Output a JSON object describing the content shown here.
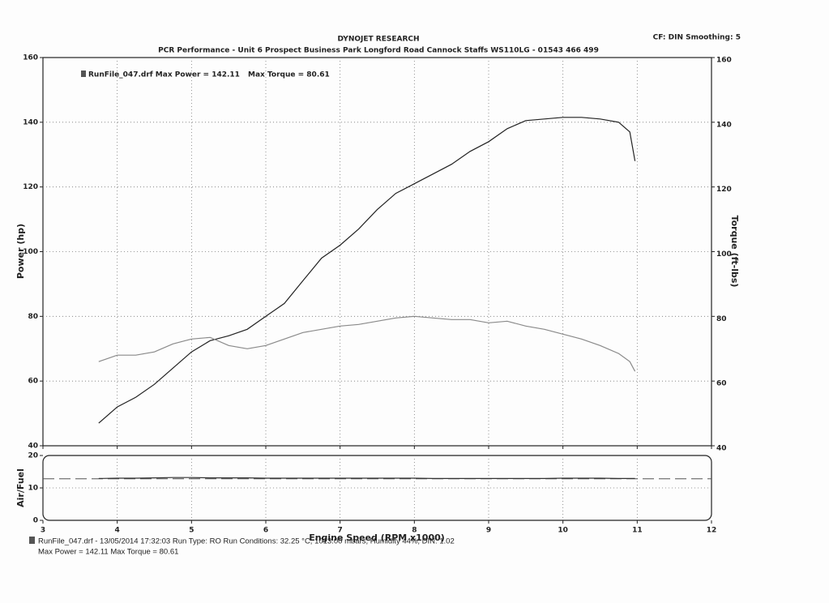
{
  "header": {
    "title": "DYNOJET RESEARCH",
    "subtitle": "PCR Performance - Unit 6 Prospect Business Park Longford Road Cannock Staffs WS110LG - 01543 466 499",
    "settings": "CF: DIN  Smoothing: 5"
  },
  "chart_data": [
    {
      "type": "line",
      "legend_text": "RunFile_047.drf Max Power = 142.11",
      "legend_text_2": "Max Torque = 80.61",
      "y_label": "Power (hp)",
      "y2_label": "Torque (ft-lbs)",
      "x": [
        3.75,
        4,
        4.25,
        4.5,
        4.75,
        5,
        5.25,
        5.5,
        5.75,
        6,
        6.25,
        6.5,
        6.75,
        7,
        7.25,
        7.5,
        7.75,
        8,
        8.25,
        8.5,
        8.75,
        9,
        9.25,
        9.5,
        9.75,
        10,
        10.25,
        10.5,
        10.75,
        10.9,
        10.97
      ],
      "series": [
        {
          "color": "#222222",
          "values": [
            47,
            52,
            55,
            59,
            64,
            69,
            72.5,
            74,
            76,
            80,
            84,
            91,
            98,
            102,
            107,
            113,
            118,
            121,
            124,
            127,
            131,
            134,
            138,
            140.5,
            141,
            141.5,
            141.5,
            141,
            140,
            137,
            128
          ]
        },
        {
          "color": "#8a8a8a",
          "axis": "y2",
          "values": [
            66,
            68,
            68,
            69,
            71.5,
            73,
            73.5,
            71,
            70,
            71,
            73,
            75,
            76,
            77,
            77.5,
            78.5,
            79.5,
            80,
            79.5,
            79,
            79,
            78,
            78.5,
            77,
            76,
            74.5,
            73,
            71,
            68.5,
            66,
            63
          ]
        }
      ],
      "xlim": [
        3,
        12
      ],
      "xticks": [
        3,
        4,
        5,
        6,
        7,
        8,
        9,
        10,
        11,
        12
      ],
      "ylim": [
        40,
        160
      ],
      "yticks": [
        40,
        60,
        80,
        100,
        120,
        140,
        160
      ],
      "y2lim": [
        40,
        160
      ],
      "y2ticks": [
        40,
        60,
        80,
        100,
        120,
        140,
        160
      ],
      "grid": true
    },
    {
      "type": "line",
      "y_label": "Air/Fuel",
      "x_label": "Engine Speed (RPM x1000)",
      "x": [
        3.75,
        4,
        4.25,
        4.5,
        4.75,
        5,
        5.25,
        5.5,
        5.75,
        6,
        6.25,
        6.5,
        6.75,
        7,
        7.25,
        7.5,
        7.75,
        8,
        8.25,
        8.5,
        8.75,
        9,
        9.25,
        9.5,
        9.75,
        10,
        10.25,
        10.5,
        10.75,
        10.9,
        10.97
      ],
      "series": [
        {
          "color": "#333333",
          "values": [
            12.9,
            13,
            13,
            13.1,
            13.2,
            13.2,
            13.1,
            13.1,
            13.1,
            13,
            13,
            13,
            13,
            13,
            13,
            13,
            13,
            13,
            12.9,
            12.9,
            12.9,
            12.9,
            12.9,
            12.9,
            12.9,
            13,
            13,
            13,
            12.9,
            12.9,
            12.9
          ]
        }
      ],
      "reference_line": 12.8,
      "xlim": [
        3,
        12
      ],
      "xticks": [
        3,
        4,
        5,
        6,
        7,
        8,
        9,
        10,
        11,
        12
      ],
      "ylim": [
        0,
        20
      ],
      "yticks": [
        0,
        10,
        20
      ],
      "grid": true
    }
  ],
  "footer": {
    "line1": "RunFile_047.drf - 13/05/2014 17:32:03  Run Type: RO  Run Conditions: 32.25 °C, 1013.00 mbars, Humidity 44%, DIN: 1.02",
    "line2": "Max Power = 142.11  Max Torque = 80.61"
  }
}
